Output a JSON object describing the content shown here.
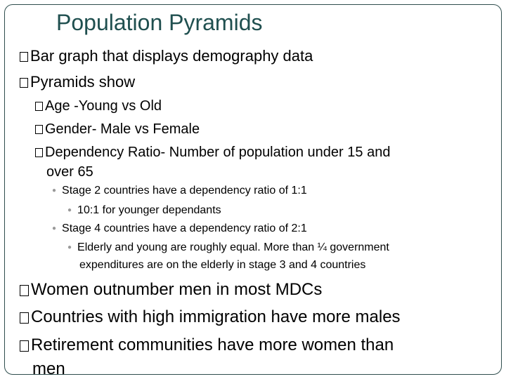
{
  "slide": {
    "title": "Population Pyramids",
    "bullets": [
      "Bar graph that displays demography data",
      "Pyramids show",
      "Age -Young vs Old",
      "Gender- Male vs Female",
      "Dependency Ratio- Number of population under 15 and",
      "over 65",
      "Stage 2 countries have a dependency ratio of 1:1",
      "10:1 for younger dependants",
      "Stage 4 countries have a dependency ratio of 2:1",
      "Elderly and young are roughly equal. More than ¼ government",
      "expenditures  are on the elderly in stage 3 and 4 countries",
      "Women outnumber men in most MDCs",
      "Countries with high immigration have more males",
      "Retirement communities have more women than",
      "men"
    ]
  },
  "colors": {
    "title": "#1f4f4f",
    "frame": "#2f4e4e",
    "sub_bullet": "#999999"
  }
}
